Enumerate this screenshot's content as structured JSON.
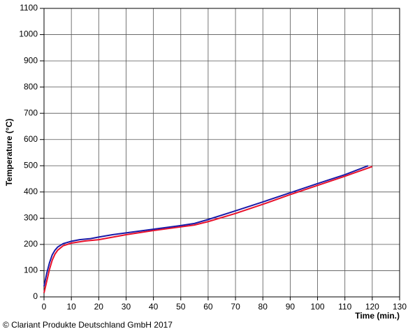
{
  "chart_data": {
    "type": "line",
    "y_label": "Temperature (°C)",
    "x_label": "Time (min.)",
    "footnote": "© Clariant Produkte Deutschland GmbH 2017",
    "xlim": [
      0,
      130
    ],
    "xticks": [
      0,
      10,
      20,
      30,
      40,
      50,
      60,
      70,
      80,
      90,
      100,
      110,
      120,
      130
    ],
    "ylim": [
      0,
      1100
    ],
    "yticks": [
      0,
      100,
      200,
      300,
      400,
      500,
      600,
      700,
      800,
      900,
      1000,
      1100
    ],
    "grid": true,
    "series": [
      {
        "color": "#1a1aa8",
        "x": [
          0,
          1,
          2,
          3,
          4,
          5,
          7,
          10,
          13,
          17,
          20,
          25,
          30,
          40,
          50,
          55,
          60,
          70,
          80,
          90,
          100,
          110,
          118.5
        ],
        "values": [
          40,
          90,
          130,
          160,
          178,
          190,
          203,
          212,
          218,
          222,
          228,
          237,
          244,
          258,
          272,
          280,
          295,
          328,
          362,
          397,
          432,
          466,
          500
        ]
      },
      {
        "color": "#e8102a",
        "x": [
          0,
          1,
          2,
          3,
          4,
          5,
          7,
          10,
          15,
          20,
          30,
          40,
          50,
          55,
          60,
          70,
          80,
          90,
          100,
          110,
          120
        ],
        "values": [
          15,
          60,
          105,
          140,
          163,
          178,
          195,
          205,
          213,
          218,
          237,
          253,
          267,
          274,
          287,
          318,
          353,
          390,
          425,
          460,
          497
        ]
      }
    ]
  }
}
